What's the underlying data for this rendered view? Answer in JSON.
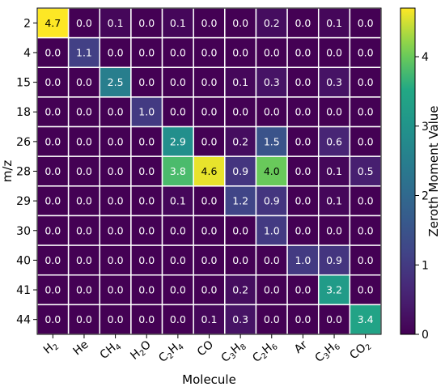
{
  "chart_data": {
    "type": "heatmap",
    "xlabel": "Molecule",
    "ylabel": "m/z",
    "x_categories": [
      "H2",
      "He",
      "CH4",
      "H2O",
      "C2H4",
      "CO",
      "C3H8",
      "C2H6",
      "Ar",
      "C3H6",
      "CO2"
    ],
    "y_categories": [
      "2",
      "4",
      "15",
      "18",
      "26",
      "28",
      "29",
      "30",
      "40",
      "41",
      "44"
    ],
    "values": [
      [
        4.7,
        0.0,
        0.1,
        0.0,
        0.1,
        0.0,
        0.0,
        0.2,
        0.0,
        0.1,
        0.0
      ],
      [
        0.0,
        1.1,
        0.0,
        0.0,
        0.0,
        0.0,
        0.0,
        0.0,
        0.0,
        0.0,
        0.0
      ],
      [
        0.0,
        0.0,
        2.5,
        0.0,
        0.0,
        0.0,
        0.1,
        0.3,
        0.0,
        0.3,
        0.0
      ],
      [
        0.0,
        0.0,
        0.0,
        1.0,
        0.0,
        0.0,
        0.0,
        0.0,
        0.0,
        0.0,
        0.0
      ],
      [
        0.0,
        0.0,
        0.0,
        0.0,
        2.9,
        0.0,
        0.2,
        1.5,
        0.0,
        0.6,
        0.0
      ],
      [
        0.0,
        0.0,
        0.0,
        0.0,
        3.8,
        4.6,
        0.9,
        4.0,
        0.0,
        0.1,
        0.5
      ],
      [
        0.0,
        0.0,
        0.0,
        0.0,
        0.1,
        0.0,
        1.2,
        0.9,
        0.0,
        0.1,
        0.0
      ],
      [
        0.0,
        0.0,
        0.0,
        0.0,
        0.0,
        0.0,
        0.0,
        1.0,
        0.0,
        0.0,
        0.0
      ],
      [
        0.0,
        0.0,
        0.0,
        0.0,
        0.0,
        0.0,
        0.0,
        0.0,
        1.0,
        0.9,
        0.0
      ],
      [
        0.0,
        0.0,
        0.0,
        0.0,
        0.0,
        0.0,
        0.2,
        0.0,
        0.0,
        3.2,
        0.0
      ],
      [
        0.0,
        0.0,
        0.0,
        0.0,
        0.0,
        0.1,
        0.3,
        0.0,
        0.0,
        0.0,
        3.4
      ]
    ],
    "colorbar": {
      "label": "Zeroth Moment Value",
      "range": [
        0,
        4.7
      ],
      "ticks": [
        0,
        1,
        2,
        3,
        4
      ],
      "colormap": "viridis"
    },
    "cell_border_color": "#ffffff"
  }
}
